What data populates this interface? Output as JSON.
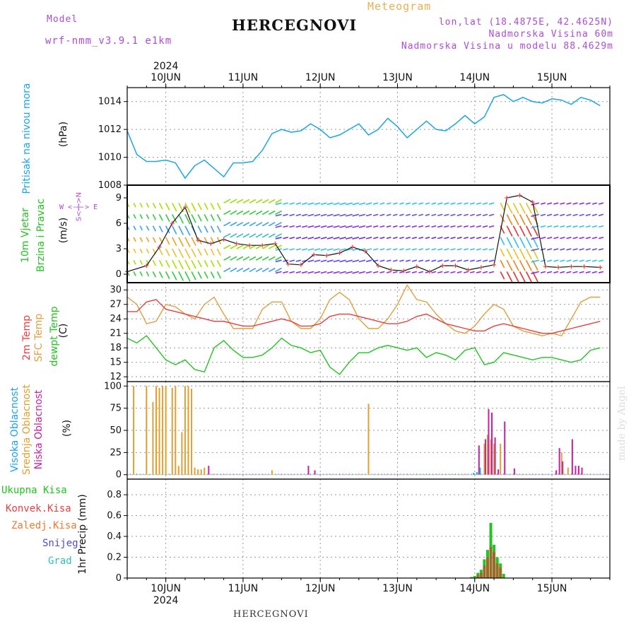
{
  "header": {
    "model_label": "Model",
    "model_name": "wrf-nmm_v3.9.1 e1km",
    "station": "HERCEGNOVI",
    "meteogram": "Meteogram",
    "lonlat": "lon,lat (18.4875E, 42.4625N)",
    "elevation": "Nadmorska Visina 60m",
    "model_elevation": "Nadmorska Visina u modelu 88.4629m"
  },
  "time_axis": {
    "year": "2024",
    "days": [
      "10JUN",
      "11JUN",
      "12JUN",
      "13JUN",
      "14JUN",
      "15JUN"
    ]
  },
  "footer": {
    "station": "HERCEGNOVI",
    "credit": "made by Angel"
  },
  "panels": {
    "pressure": {
      "label": "Pritisak na nivou mora",
      "unit": "(hPa)",
      "ticks": [
        "1008",
        "1010",
        "1012",
        "1014"
      ]
    },
    "wind": {
      "label_a": "10m Vjetar",
      "label_b": "Brzina i Pravac",
      "unit": "(m/s)",
      "ticks": [
        "0",
        "3",
        "6",
        "9"
      ],
      "compass_top": "W <-|-> E",
      "compass_side": "S<-|->N"
    },
    "temp": {
      "label_a": "2m Temp",
      "label_b": "SFC Temp",
      "label_c": "dewpt Temp",
      "unit": "(C)",
      "ticks": [
        "12",
        "15",
        "18",
        "21",
        "24",
        "27",
        "30"
      ]
    },
    "cloud": {
      "label_a": "Visoka Oblacnost",
      "label_b": "Srednja Oblacnost",
      "label_c": "Niska Oblacnost",
      "unit": "(%)",
      "ticks": [
        "0",
        "25",
        "50",
        "75",
        "100"
      ]
    },
    "precip": {
      "legend": [
        "Ukupna Kisa",
        "Konvek.Kisa",
        "Zaledj.Kisa",
        "Snijeg",
        "Grad"
      ],
      "unit": "1hr Precip (mm)",
      "ticks": [
        "0",
        "0.2",
        "0.4",
        "0.6",
        "0.8"
      ]
    }
  },
  "colors": {
    "pressure": "#1aa6e6",
    "temp": "#e84040",
    "sfc": "#e0a040",
    "dew": "#22c422",
    "high": "#1aa6e6",
    "mid": "#e0a030",
    "low": "#c81ea8",
    "rain_total": "#22c422",
    "rain_conv": "#e84040",
    "rain_frz": "#f07a30",
    "snow": "#4a4ae8",
    "hail": "#30c0c0"
  },
  "chart_data": [
    {
      "type": "line",
      "title": "Pritisak na nivou mora",
      "ylabel": "(hPa)",
      "x_unit": "hours from 09JUN 12UTC",
      "ylim": [
        1008,
        1015
      ],
      "x": [
        0,
        3,
        6,
        9,
        12,
        15,
        18,
        21,
        24,
        27,
        30,
        33,
        36,
        39,
        42,
        45,
        48,
        51,
        54,
        57,
        60,
        63,
        66,
        69,
        72,
        75,
        78,
        81,
        84,
        87,
        90,
        93,
        96,
        99,
        102,
        105,
        108,
        111,
        114,
        117,
        120,
        123,
        126,
        129,
        132,
        135,
        138,
        141,
        144,
        147
      ],
      "series": [
        {
          "name": "Pritisak na nivou mora",
          "values": [
            1011.9,
            1010.2,
            1009.7,
            1009.7,
            1009.8,
            1009.6,
            1008.5,
            1009.4,
            1009.8,
            1009.2,
            1008.6,
            1009.6,
            1009.6,
            1009.7,
            1010.5,
            1011.7,
            1012.0,
            1011.8,
            1011.9,
            1012.4,
            1012.0,
            1011.4,
            1011.6,
            1012.0,
            1012.4,
            1011.6,
            1012.0,
            1012.8,
            1012.2,
            1011.4,
            1012.0,
            1012.6,
            1012.0,
            1011.9,
            1012.4,
            1013.0,
            1012.4,
            1012.9,
            1014.3,
            1014.5,
            1014.0,
            1014.3,
            1014.0,
            1013.9,
            1014.2,
            1014.1,
            1013.8,
            1014.3,
            1014.1,
            1013.7
          ]
        }
      ]
    },
    {
      "type": "line",
      "title": "10m Vjetar Brzina i Pravac",
      "ylabel": "(m/s)",
      "x_unit": "hours from 09JUN 12UTC",
      "ylim": [
        0,
        10
      ],
      "x": [
        0,
        6,
        10,
        14,
        18,
        22,
        26,
        30,
        34,
        38,
        42,
        46,
        50,
        54,
        58,
        62,
        66,
        70,
        74,
        78,
        82,
        86,
        90,
        94,
        98,
        102,
        106,
        110,
        114,
        118,
        122,
        126,
        130,
        134,
        138,
        142,
        147
      ],
      "series": [
        {
          "name": "speed",
          "values": [
            0.3,
            1.0,
            3.2,
            6.0,
            7.9,
            4.0,
            3.6,
            4.1,
            3.6,
            3.4,
            3.4,
            3.6,
            1.2,
            1.1,
            2.3,
            2.2,
            2.5,
            3.2,
            2.7,
            1.0,
            0.5,
            0.4,
            0.9,
            0.3,
            1.0,
            1.0,
            0.5,
            0.8,
            1.1,
            9.0,
            9.3,
            8.5,
            0.9,
            0.8,
            0.9,
            0.9,
            0.8
          ]
        }
      ]
    },
    {
      "type": "line",
      "title": "2m Temp / SFC Temp / dewpt Temp",
      "ylabel": "(C)",
      "x_unit": "hours from 09JUN 12UTC",
      "ylim": [
        11,
        31
      ],
      "x": [
        0,
        3,
        6,
        9,
        12,
        15,
        18,
        21,
        24,
        27,
        30,
        33,
        36,
        39,
        42,
        45,
        48,
        51,
        54,
        57,
        60,
        63,
        66,
        69,
        72,
        75,
        78,
        81,
        84,
        87,
        90,
        93,
        96,
        99,
        102,
        105,
        108,
        111,
        114,
        117,
        120,
        123,
        126,
        129,
        132,
        135,
        138,
        141,
        144,
        147
      ],
      "series": [
        {
          "name": "2m Temp",
          "values": [
            25.5,
            25.5,
            27.5,
            28.0,
            26.0,
            25.5,
            25.0,
            24.5,
            24.0,
            23.5,
            23.5,
            23.0,
            22.5,
            22.5,
            23.0,
            23.5,
            24.0,
            23.5,
            22.5,
            22.5,
            23.0,
            24.5,
            25.0,
            25.0,
            24.5,
            24.0,
            23.5,
            23.0,
            23.0,
            23.5,
            24.5,
            25.0,
            24.0,
            23.0,
            22.5,
            22.0,
            21.5,
            21.5,
            22.5,
            23.0,
            22.5,
            22.0,
            21.5,
            21.0,
            21.0,
            21.5,
            22.0,
            22.5,
            23.0,
            23.5
          ]
        },
        {
          "name": "SFC Temp",
          "values": [
            28.5,
            27.0,
            23.0,
            23.5,
            27.0,
            26.5,
            25.0,
            24.0,
            27.0,
            28.5,
            25.0,
            22.0,
            22.0,
            22.0,
            26.0,
            27.5,
            27.5,
            23.5,
            22.0,
            22.0,
            24.0,
            28.0,
            29.5,
            28.0,
            24.0,
            22.0,
            22.0,
            24.0,
            27.0,
            31.0,
            28.0,
            27.5,
            25.0,
            23.0,
            21.5,
            21.0,
            22.5,
            25.0,
            27.0,
            26.0,
            22.5,
            21.5,
            21.0,
            20.5,
            21.0,
            20.5,
            24.0,
            27.5,
            28.5,
            28.5
          ]
        },
        {
          "name": "dewpt Temp",
          "values": [
            20.0,
            19.0,
            20.5,
            18.0,
            15.5,
            14.5,
            15.5,
            13.5,
            13.0,
            18.0,
            19.5,
            17.5,
            16.0,
            16.0,
            16.5,
            18.0,
            20.0,
            18.5,
            18.0,
            17.0,
            17.5,
            14.0,
            12.5,
            15.0,
            17.0,
            17.0,
            18.0,
            18.5,
            18.0,
            17.5,
            18.0,
            16.0,
            17.0,
            16.5,
            15.5,
            17.5,
            18.0,
            14.5,
            15.0,
            17.0,
            16.5,
            16.0,
            15.5,
            16.0,
            16.0,
            15.5,
            15.0,
            15.5,
            17.5,
            18.0
          ]
        }
      ]
    },
    {
      "type": "bar",
      "title": "Visoka / Srednja / Niska Oblacnost",
      "ylabel": "(%)",
      "x_unit": "hours from 09JUN 12UTC",
      "ylim": [
        0,
        100
      ],
      "series": [
        {
          "name": "Srednja Oblacnost",
          "x": [
            2,
            6,
            8,
            9,
            10,
            11,
            12,
            14,
            15,
            16,
            17,
            18,
            19,
            20,
            21,
            22,
            23,
            24,
            45,
            75,
            111,
            112,
            113,
            114,
            116,
            135,
            137
          ],
          "values": [
            100,
            100,
            82,
            100,
            98,
            100,
            100,
            98,
            100,
            10,
            48,
            100,
            100,
            97,
            8,
            6,
            6,
            8,
            5,
            80,
            35,
            45,
            40,
            35,
            35,
            25,
            8
          ]
        },
        {
          "name": "Niska Oblacnost",
          "x": [
            25,
            56,
            58,
            109,
            111,
            112,
            113,
            114,
            115,
            117,
            120,
            133,
            134,
            135,
            138,
            139,
            140,
            141
          ],
          "values": [
            10,
            10,
            5,
            33,
            40,
            74,
            70,
            42,
            6,
            60,
            7,
            5,
            30,
            15,
            40,
            10,
            10,
            8
          ]
        },
        {
          "name": "Visoka Oblacnost",
          "x": [
            108,
            109,
            110
          ],
          "values": [
            2,
            3,
            8
          ]
        }
      ]
    },
    {
      "type": "bar",
      "title": "1hr Precip",
      "ylabel": "1hr Precip (mm)",
      "x_unit": "hours from 09JUN 12UTC",
      "ylim": [
        0,
        0.9
      ],
      "series": [
        {
          "name": "Ukupna Kisa",
          "x": [
            107,
            108,
            109,
            110,
            111,
            112,
            113,
            114,
            115,
            116,
            117
          ],
          "values": [
            0.01,
            0.02,
            0.05,
            0.08,
            0.18,
            0.27,
            0.53,
            0.32,
            0.2,
            0.14,
            0.04
          ]
        },
        {
          "name": "Konvek.Kisa",
          "x": [
            109,
            110,
            111,
            112,
            113,
            114,
            115,
            116
          ],
          "values": [
            0.03,
            0.05,
            0.12,
            0.2,
            0.3,
            0.25,
            0.14,
            0.1
          ]
        }
      ]
    }
  ]
}
